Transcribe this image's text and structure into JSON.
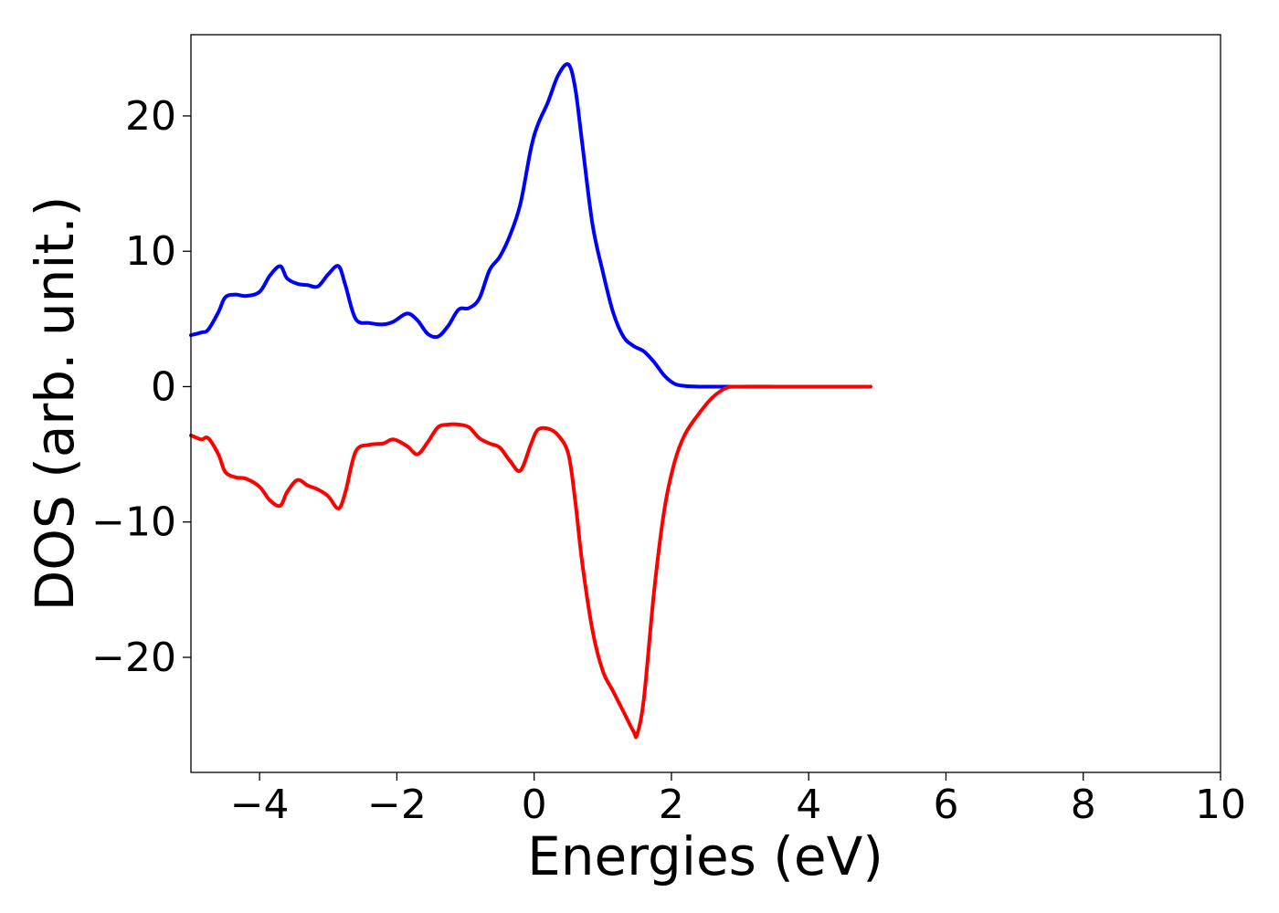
{
  "chart_data": {
    "type": "line",
    "title": "",
    "xlabel": "Energies (eV)",
    "ylabel": "DOS (arb. unit.)",
    "xlim": [
      -5,
      10
    ],
    "ylim": [
      -28.5,
      26
    ],
    "xticks": [
      -4,
      -2,
      0,
      2,
      4,
      6,
      8,
      10
    ],
    "yticks": [
      -20,
      -10,
      0,
      10,
      20
    ],
    "xtick_labels": [
      "−4",
      "−2",
      "0",
      "2",
      "4",
      "6",
      "8",
      "10"
    ],
    "ytick_labels": [
      "−20",
      "−10",
      "0",
      "10",
      "20"
    ],
    "grid": false,
    "legend": "none",
    "series": [
      {
        "color": "#0000ff",
        "x": [
          -5.0,
          -4.85,
          -4.75,
          -4.6,
          -4.5,
          -4.35,
          -4.2,
          -4.0,
          -3.85,
          -3.7,
          -3.6,
          -3.45,
          -3.3,
          -3.15,
          -3.0,
          -2.85,
          -2.75,
          -2.6,
          -2.4,
          -2.2,
          -2.05,
          -1.85,
          -1.7,
          -1.55,
          -1.4,
          -1.25,
          -1.1,
          -0.95,
          -0.8,
          -0.65,
          -0.5,
          -0.35,
          -0.2,
          -0.05,
          0.05,
          0.2,
          0.35,
          0.5,
          0.6,
          0.7,
          0.85,
          1.0,
          1.15,
          1.3,
          1.45,
          1.6,
          1.75,
          1.9,
          2.05,
          2.2,
          2.4,
          2.6,
          2.8,
          3.0,
          3.5,
          4.0,
          4.5,
          4.9
        ],
        "y": [
          3.8,
          4.0,
          4.2,
          5.5,
          6.6,
          6.8,
          6.7,
          7.0,
          8.2,
          8.9,
          8.0,
          7.6,
          7.5,
          7.4,
          8.3,
          8.9,
          7.5,
          5.0,
          4.7,
          4.6,
          4.8,
          5.4,
          4.9,
          3.9,
          3.7,
          4.5,
          5.7,
          5.8,
          6.5,
          8.6,
          9.6,
          11.2,
          13.5,
          17.5,
          19.3,
          21.0,
          23.0,
          23.8,
          22.0,
          18.0,
          12.0,
          8.5,
          5.5,
          3.7,
          3.0,
          2.6,
          1.8,
          0.8,
          0.2,
          0.05,
          0.0,
          0.0,
          0.0,
          0.0,
          0.0,
          0.0,
          0.0,
          0.0
        ]
      },
      {
        "color": "#ff0000",
        "x": [
          -5.0,
          -4.85,
          -4.75,
          -4.6,
          -4.5,
          -4.35,
          -4.2,
          -4.0,
          -3.85,
          -3.7,
          -3.6,
          -3.45,
          -3.3,
          -3.15,
          -3.0,
          -2.85,
          -2.75,
          -2.6,
          -2.4,
          -2.2,
          -2.05,
          -1.85,
          -1.7,
          -1.55,
          -1.4,
          -1.25,
          -1.1,
          -0.95,
          -0.8,
          -0.65,
          -0.5,
          -0.35,
          -0.2,
          -0.05,
          0.05,
          0.2,
          0.35,
          0.5,
          0.6,
          0.7,
          0.85,
          1.0,
          1.15,
          1.3,
          1.45,
          1.5,
          1.6,
          1.75,
          1.9,
          2.05,
          2.2,
          2.4,
          2.6,
          2.8,
          3.0,
          3.5,
          4.0,
          4.5,
          4.9
        ],
        "y": [
          -3.6,
          -3.9,
          -3.8,
          -5.0,
          -6.3,
          -6.7,
          -6.8,
          -7.4,
          -8.4,
          -8.8,
          -7.8,
          -6.9,
          -7.3,
          -7.6,
          -8.1,
          -9.0,
          -7.8,
          -4.8,
          -4.3,
          -4.2,
          -3.9,
          -4.4,
          -5.0,
          -4.1,
          -3.0,
          -2.8,
          -2.8,
          -3.0,
          -3.8,
          -4.2,
          -4.5,
          -5.5,
          -6.2,
          -4.3,
          -3.2,
          -3.1,
          -3.6,
          -5.0,
          -8.5,
          -13.0,
          -18.0,
          -21.0,
          -22.5,
          -24.0,
          -25.5,
          -25.7,
          -23.0,
          -15.0,
          -9.0,
          -5.5,
          -3.5,
          -2.0,
          -0.8,
          -0.1,
          0.0,
          0.0,
          0.0,
          0.0,
          0.0
        ]
      }
    ]
  }
}
